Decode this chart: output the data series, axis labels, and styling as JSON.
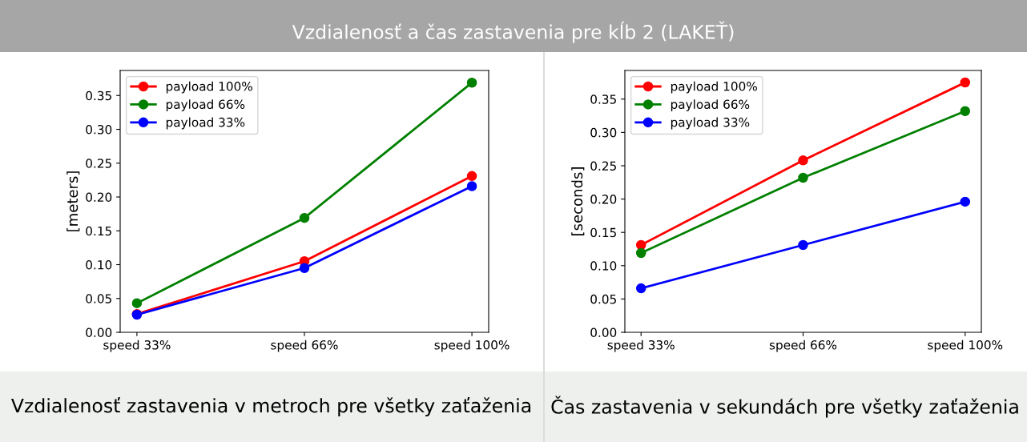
{
  "chart_data": [
    {
      "type": "line",
      "title": "Vzdialenosť a čas zastavenia pre kĺb 2 (LAKEŤ)",
      "ylabel": "[meters]",
      "categories": [
        "speed 33%",
        "speed 66%",
        "speed 100%"
      ],
      "series": [
        {
          "name": "payload 100%",
          "color": "#ff0000",
          "values": [
            0.027,
            0.105,
            0.231
          ]
        },
        {
          "name": "payload 66%",
          "color": "#008000",
          "values": [
            0.043,
            0.169,
            0.369
          ]
        },
        {
          "name": "payload 33%",
          "color": "#0000ff",
          "values": [
            0.026,
            0.095,
            0.216
          ]
        }
      ],
      "ylim": [
        0,
        0.387
      ],
      "yticks": [
        {
          "value": 0,
          "label": "0.00"
        },
        0.05,
        {
          "value": 0.1,
          "label": "0.10"
        },
        0.15,
        {
          "value": 0.2,
          "label": "0.20"
        },
        0.25,
        {
          "value": 0.3,
          "label": "0.30"
        },
        0.35
      ],
      "legend": "top left",
      "marker": "circle",
      "line_style": "solid",
      "grid": false,
      "annotations": [
        "Vzdialenosť zastavenia v metroch pre všetky zaťaženia"
      ]
    },
    {
      "type": "line",
      "ylabel": "[seconds]",
      "categories": [
        "speed 33%",
        "speed 66%",
        "speed 100%"
      ],
      "series": [
        {
          "name": "payload 100%",
          "color": "#ff0000",
          "values": [
            0.131,
            0.258,
            0.375
          ]
        },
        {
          "name": "payload 66%",
          "color": "#008000",
          "values": [
            0.119,
            0.232,
            0.332
          ]
        },
        {
          "name": "payload 33%",
          "color": "#0000ff",
          "values": [
            0.066,
            0.131,
            0.196
          ]
        }
      ],
      "ylim": [
        0,
        0.393
      ],
      "yticks": [
        {
          "value": 0,
          "label": "0.00"
        },
        0.05,
        {
          "value": 0.1,
          "label": "0.10"
        },
        0.15,
        {
          "value": 0.2,
          "label": "0.20"
        },
        0.25,
        {
          "value": 0.3,
          "label": "0.30"
        },
        0.35
      ],
      "legend": "top left",
      "marker": "circle",
      "line_style": "solid",
      "grid": false,
      "annotations": [
        "Čas zastavenia v sekundách pre všetky zaťaženia"
      ]
    }
  ]
}
